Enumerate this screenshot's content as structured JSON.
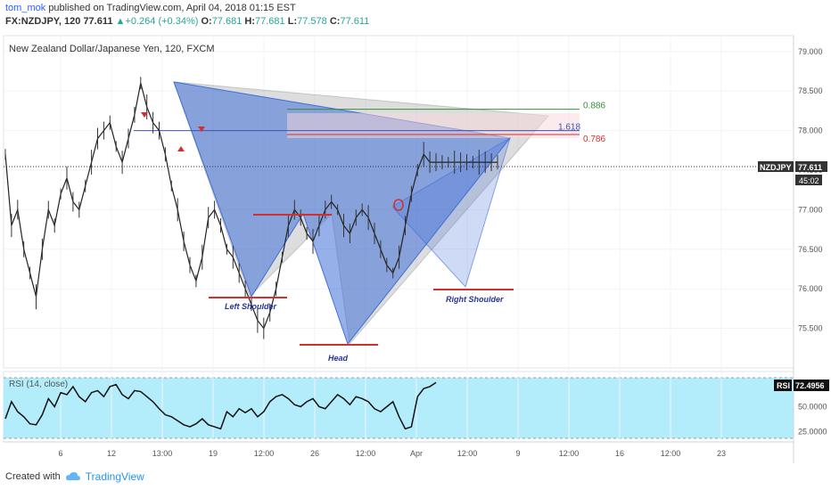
{
  "header": {
    "user": "tom_mok",
    "published_text": "published on TradingView.com, April 04, 2018 01:15 EST",
    "symbol_interval": "FX:NZDJPY, 120",
    "last": "77.611",
    "change": "+0.264 (+0.34%)",
    "open_label": "O:",
    "open": "77.681",
    "high_label": "H:",
    "high": "77.681",
    "low_label": "L:",
    "low": "77.578",
    "close_label": "C:",
    "close": "77.611"
  },
  "chart_data": [
    {
      "type": "line",
      "title": "New Zealand Dollar/Japanese Yen, 120, FXCM",
      "ylim": [
        75.0,
        79.2
      ],
      "y_ticks": [
        "79.000",
        "78.500",
        "78.000",
        "77.500",
        "77.000",
        "76.500",
        "76.000",
        "75.500"
      ],
      "x_ticks": [
        "6",
        "12",
        "13:00",
        "19",
        "12:00",
        "26",
        "12:00",
        "Apr",
        "12:00",
        "9",
        "12:00",
        "16",
        "12:00",
        "23"
      ],
      "series": [
        {
          "x": [
            0,
            3,
            6,
            9,
            12,
            15,
            18,
            21,
            24,
            27,
            30,
            33,
            36,
            39,
            42,
            45,
            48,
            51,
            54,
            57,
            60,
            63,
            66,
            69,
            72,
            75,
            78,
            81,
            84,
            87,
            90,
            93,
            96,
            99,
            102,
            105,
            108,
            111,
            114,
            117,
            120,
            123,
            126,
            129,
            132,
            135,
            138,
            141,
            144,
            147,
            150,
            153,
            156,
            159,
            162,
            165,
            168,
            171,
            174,
            177,
            180,
            183,
            186,
            189,
            192,
            195,
            198,
            201,
            204,
            207,
            210,
            213,
            216,
            219,
            222,
            225,
            228,
            231,
            234,
            237,
            240
          ],
          "values": [
            77.7,
            76.8,
            77.0,
            76.5,
            76.2,
            75.9,
            76.5,
            77.0,
            76.8,
            77.2,
            77.4,
            77.1,
            77.0,
            77.3,
            77.6,
            77.9,
            78.0,
            78.1,
            77.8,
            77.6,
            77.9,
            78.2,
            78.6,
            78.3,
            78.1,
            78.0,
            77.7,
            77.3,
            77.0,
            76.6,
            76.3,
            76.1,
            76.4,
            76.9,
            77.0,
            76.8,
            76.5,
            76.4,
            76.2,
            76.0,
            75.8,
            75.6,
            75.5,
            75.7,
            76.0,
            76.4,
            76.8,
            77.0,
            76.9,
            76.7,
            76.6,
            76.8,
            77.0,
            77.1,
            77.0,
            76.8,
            76.7,
            76.9,
            77.0,
            76.9,
            76.7,
            76.5,
            76.3,
            76.2,
            76.4,
            76.8,
            77.2,
            77.5,
            77.7,
            77.6,
            77.6,
            77.6,
            77.6,
            77.6,
            77.6,
            77.6,
            77.6,
            77.6,
            77.6,
            77.6,
            77.6
          ]
        }
      ],
      "last_price_label": "NZDJPY",
      "last_price": "77.611",
      "countdown": "45:02",
      "fib_levels": [
        {
          "label": "0.886",
          "value": 78.27,
          "color": "#388e3c"
        },
        {
          "label": "1.618",
          "value": 78.0,
          "color": "#3f51b5"
        },
        {
          "label": "0.786",
          "value": 77.95,
          "color": "#d32f2f"
        }
      ],
      "annotations": [
        "Left Shoulder",
        "Head",
        "Right Shoulder"
      ]
    },
    {
      "type": "line",
      "title": "RSI (14, close)",
      "ylim": [
        15,
        85
      ],
      "y_ticks": [
        "50.0000",
        "25.0000"
      ],
      "band": [
        30,
        70
      ],
      "series": [
        {
          "x": [
            0,
            3,
            6,
            9,
            12,
            15,
            18,
            21,
            24,
            27,
            30,
            33,
            36,
            39,
            42,
            45,
            48,
            51,
            54,
            57,
            60,
            63,
            66,
            69,
            72,
            75,
            78,
            81,
            84,
            87,
            90,
            93,
            96,
            99,
            102,
            105,
            108,
            111,
            114,
            117,
            120,
            123,
            126,
            129,
            132,
            135,
            138,
            141,
            144,
            147,
            150,
            153,
            156,
            159,
            162,
            165,
            168,
            171,
            174,
            177,
            180,
            183,
            186,
            189,
            192,
            195,
            198,
            201,
            204,
            207,
            210
          ],
          "values": [
            38,
            55,
            45,
            40,
            33,
            32,
            42,
            58,
            50,
            64,
            62,
            70,
            60,
            55,
            64,
            66,
            60,
            70,
            72,
            62,
            58,
            66,
            65,
            60,
            55,
            48,
            42,
            40,
            36,
            32,
            30,
            33,
            38,
            32,
            30,
            28,
            45,
            40,
            48,
            44,
            48,
            40,
            45,
            55,
            60,
            62,
            58,
            52,
            50,
            55,
            58,
            50,
            48,
            55,
            62,
            58,
            52,
            60,
            58,
            55,
            48,
            45,
            50,
            55,
            40,
            28,
            30,
            60,
            68,
            70,
            74
          ]
        }
      ],
      "last_label": "RSI",
      "last_value": "72.4956"
    }
  ],
  "footer": {
    "created_with": "Created with",
    "brand": "TradingView"
  },
  "colors": {
    "accent": "#2962ff",
    "pattern_blue": "#3f6fd8",
    "pattern_gray": "#9e9e9e",
    "rsi_band": "#b3ecfa",
    "price_line": "#222222"
  }
}
